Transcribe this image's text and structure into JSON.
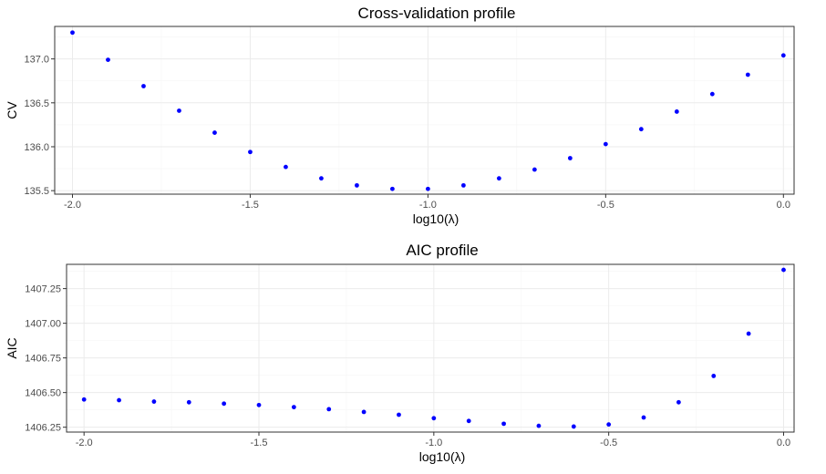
{
  "chart_data": [
    {
      "type": "scatter",
      "title": "Cross-validation profile",
      "xlabel": "log10(λ)",
      "ylabel": "CV",
      "xlim": [
        -2.05,
        0.03
      ],
      "ylim": [
        135.46,
        137.37
      ],
      "xticks": [
        -2.0,
        -1.5,
        -1.0,
        -0.5,
        0.0
      ],
      "xtick_labels": [
        "-2.0",
        "-1.5",
        "-1.0",
        "-0.5",
        "0.0"
      ],
      "yticks": [
        135.5,
        136.0,
        136.5,
        137.0
      ],
      "ytick_labels": [
        "135.5",
        "136.0",
        "136.5",
        "137.0"
      ],
      "grid": true,
      "point_color": "#0000ff",
      "series": [
        {
          "x": [
            -2.0,
            -1.9,
            -1.8,
            -1.7,
            -1.6,
            -1.5,
            -1.4,
            -1.3,
            -1.2,
            -1.1,
            -1.0,
            -0.9,
            -0.8,
            -0.7,
            -0.6,
            -0.5,
            -0.4,
            -0.3,
            -0.2,
            -0.1,
            0.0
          ],
          "y": [
            137.3,
            136.99,
            136.69,
            136.41,
            136.16,
            135.94,
            135.77,
            135.64,
            135.56,
            135.52,
            135.52,
            135.56,
            135.64,
            135.74,
            135.87,
            136.03,
            136.2,
            136.4,
            136.6,
            136.82,
            137.04
          ]
        }
      ]
    },
    {
      "type": "scatter",
      "title": "AIC profile",
      "xlabel": "log10(λ)",
      "ylabel": "AIC",
      "xlim": [
        -2.05,
        0.03
      ],
      "ylim": [
        1406.215,
        1407.425
      ],
      "xticks": [
        -2.0,
        -1.5,
        -1.0,
        -0.5,
        0.0
      ],
      "xtick_labels": [
        "-2.0",
        "-1.5",
        "-1.0",
        "-0.5",
        "0.0"
      ],
      "yticks": [
        1406.25,
        1406.5,
        1406.75,
        1407.0,
        1407.25
      ],
      "ytick_labels": [
        "1406.25",
        "1406.50",
        "1406.75",
        "1407.00",
        "1407.25"
      ],
      "grid": true,
      "point_color": "#0000ff",
      "series": [
        {
          "x": [
            -2.0,
            -1.9,
            -1.8,
            -1.7,
            -1.6,
            -1.5,
            -1.4,
            -1.3,
            -1.2,
            -1.1,
            -1.0,
            -0.9,
            -0.8,
            -0.7,
            -0.6,
            -0.5,
            -0.4,
            -0.3,
            -0.2,
            -0.1,
            0.0
          ],
          "y": [
            1406.45,
            1406.445,
            1406.435,
            1406.43,
            1406.42,
            1406.41,
            1406.395,
            1406.38,
            1406.36,
            1406.34,
            1406.315,
            1406.295,
            1406.275,
            1406.26,
            1406.255,
            1406.27,
            1406.32,
            1406.43,
            1406.62,
            1406.925,
            1407.385
          ]
        }
      ]
    }
  ]
}
